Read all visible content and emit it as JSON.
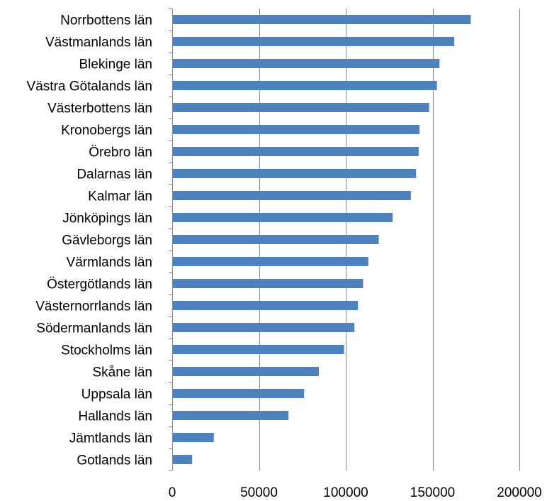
{
  "chart_data": {
    "type": "bar",
    "orientation": "horizontal",
    "categories": [
      "Norrbottens län",
      "Västmanlands län",
      "Blekinge län",
      "Västra Götalands län",
      "Västerbottens län",
      "Kronobergs län",
      "Örebro län",
      "Dalarnas län",
      "Kalmar län",
      "Jönköpings län",
      "Gävleborgs län",
      "Värmlands län",
      "Östergötlands län",
      "Västernorrlands län",
      "Södermanlands län",
      "Stockholms län",
      "Skåne län",
      "Uppsala län",
      "Hallands län",
      "Jämtlands län",
      "Gotlands län"
    ],
    "values": [
      172000,
      162500,
      154000,
      152500,
      148000,
      142500,
      142000,
      140500,
      137500,
      127000,
      119000,
      113000,
      110000,
      107000,
      105000,
      99000,
      84500,
      76000,
      67000,
      24000,
      11500
    ],
    "xlim": [
      0,
      200000
    ],
    "ticks": [
      "0",
      "50000",
      "100000",
      "150000",
      "200000"
    ],
    "title": "",
    "xlabel": "",
    "ylabel": "",
    "grid": "vertical",
    "legend": "none",
    "bar_color": "#4f81bd",
    "grid_color": "#868686"
  }
}
